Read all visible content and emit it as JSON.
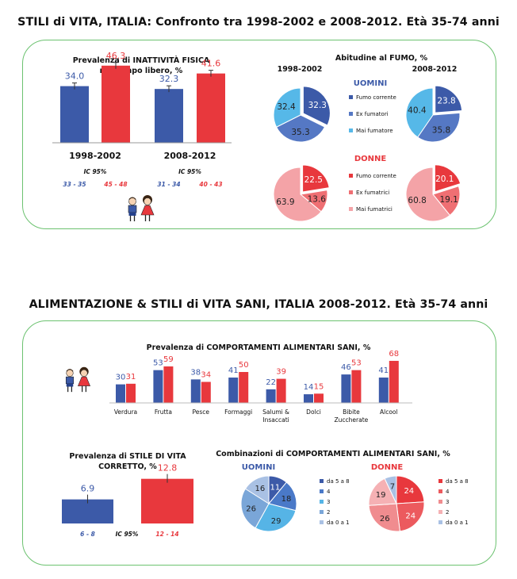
{
  "section1": {
    "title": "STILI di VITA, ITALIA: Confronto tra 1998-2002 e 2008-2012. Età 35-74 anni"
  },
  "section2": {
    "title": "ALIMENTAZIONE & STILI di VITA SANI, ITALIA 2008-2012. Età 35-74 anni"
  },
  "colors": {
    "men_blue": "#3c5aa8",
    "women_red": "#e8383d",
    "panel_border": "#6cc270",
    "smoke_men": [
      "#3c5aa8",
      "#5578c4",
      "#56b8e8"
    ],
    "smoke_women": [
      "#e8383d",
      "#ef6f73",
      "#f4a3a7"
    ],
    "comb_men": [
      "#3c5aa8",
      "#4a79c8",
      "#56b4e6",
      "#7aa6d8",
      "#a9c1e4"
    ],
    "comb_women": [
      "#e8383d",
      "#ec5a5e",
      "#f08c8f",
      "#f5b1b4",
      "#a9c1e4"
    ]
  },
  "chart_data": [
    {
      "id": "inattivita",
      "type": "bar",
      "title": "Prevalenza di INATTIVITÀ FISICA nel tempo libero, %",
      "title_lines": [
        "Prevalenza di INATTIVITÀ FISICA",
        "nel tempo libero, %"
      ],
      "categories": [
        "1998-2002",
        "2008-2012"
      ],
      "series": [
        {
          "name": "Uomini",
          "values": [
            34.0,
            32.3
          ],
          "labels": [
            "34.0",
            "32.3"
          ],
          "ci": [
            "33 - 35",
            "31 - 34"
          ]
        },
        {
          "name": "Donne",
          "values": [
            46.3,
            41.6
          ],
          "labels": [
            "46.3",
            "41.6"
          ],
          "ci": [
            "45 - 48",
            "40 - 43"
          ]
        }
      ],
      "ci_label": "IC 95%",
      "ylim": [
        0,
        60
      ]
    },
    {
      "id": "fumo",
      "type": "pie",
      "title": "Abitudine al FUMO, %",
      "periods": [
        "1998-2002",
        "2008-2012"
      ],
      "groups": [
        {
          "name": "UOMINI",
          "legend": [
            "Fumo corrente",
            "Ex fumatori",
            "Mai fumatore"
          ],
          "pies": [
            {
              "period": "1998-2002",
              "values": [
                32.3,
                35.3,
                32.4
              ],
              "labels": [
                "32.3",
                "35.3",
                "32.4"
              ]
            },
            {
              "period": "2008-2012",
              "values": [
                23.8,
                35.8,
                40.4
              ],
              "labels": [
                "23.8",
                "35.8",
                "40.4"
              ]
            }
          ]
        },
        {
          "name": "DONNE",
          "legend": [
            "Fumo corrente",
            "Ex fumatrici",
            "Mai fumatrici"
          ],
          "pies": [
            {
              "period": "1998-2002",
              "values": [
                22.5,
                13.6,
                63.9
              ],
              "labels": [
                "22.5",
                "13.6",
                "63.9"
              ]
            },
            {
              "period": "2008-2012",
              "values": [
                20.1,
                19.1,
                60.8
              ],
              "labels": [
                "20.1",
                "19.1",
                "60.8"
              ]
            }
          ]
        }
      ]
    },
    {
      "id": "comportamenti",
      "type": "bar",
      "title": "Prevalenza di COMPORTAMENTI ALIMENTARI SANI, %",
      "categories": [
        "Verdura",
        "Frutta",
        "Pesce",
        "Formaggi",
        "Salumi & Insaccati",
        "Dolci",
        "Bibite Zuccherate",
        "Alcool"
      ],
      "category_lines": [
        [
          "Verdura"
        ],
        [
          "Frutta"
        ],
        [
          "Pesce"
        ],
        [
          "Formaggi"
        ],
        [
          "Salumi &",
          "Insaccati"
        ],
        [
          "Dolci"
        ],
        [
          "Bibite",
          "Zuccherate"
        ],
        [
          "Alcool"
        ]
      ],
      "series": [
        {
          "name": "Uomini",
          "values": [
            30,
            53,
            38,
            41,
            22,
            14,
            46,
            41
          ]
        },
        {
          "name": "Donne",
          "values": [
            31,
            59,
            34,
            50,
            39,
            15,
            53,
            68
          ]
        }
      ],
      "ylim": [
        0,
        100
      ]
    },
    {
      "id": "stile_corretto",
      "type": "bar",
      "title": "Prevalenza di STILE DI VITA CORRETTO, %",
      "title_lines": [
        "Prevalenza di STILE DI VITA",
        "CORRETTO, %"
      ],
      "series": [
        {
          "name": "Uomini",
          "values": [
            6.9
          ],
          "labels": [
            "6.9"
          ],
          "ci": [
            "6 - 8"
          ]
        },
        {
          "name": "Donne",
          "values": [
            12.8
          ],
          "labels": [
            "12.8"
          ],
          "ci": [
            "12 - 14"
          ]
        }
      ],
      "ci_label": "IC 95%",
      "ylim": [
        0,
        15
      ]
    },
    {
      "id": "combinazioni",
      "type": "pie",
      "title": "Combinazioni di COMPORTAMENTI ALIMENTARI SANI, %",
      "groups": [
        {
          "name": "UOMINI",
          "legend": [
            "da 5 a 8",
            "4",
            "3",
            "2",
            "da 0 a 1"
          ],
          "values": [
            11,
            18,
            29,
            26,
            16
          ],
          "labels": [
            "11",
            "18",
            "29",
            "26",
            "16"
          ]
        },
        {
          "name": "DONNE",
          "legend": [
            "da 5 a 8",
            "4",
            "3",
            "2",
            "da 0 a 1"
          ],
          "values": [
            24,
            24,
            26,
            19,
            7
          ],
          "labels": [
            "24",
            "24",
            "26",
            "19",
            "7"
          ]
        }
      ]
    }
  ]
}
